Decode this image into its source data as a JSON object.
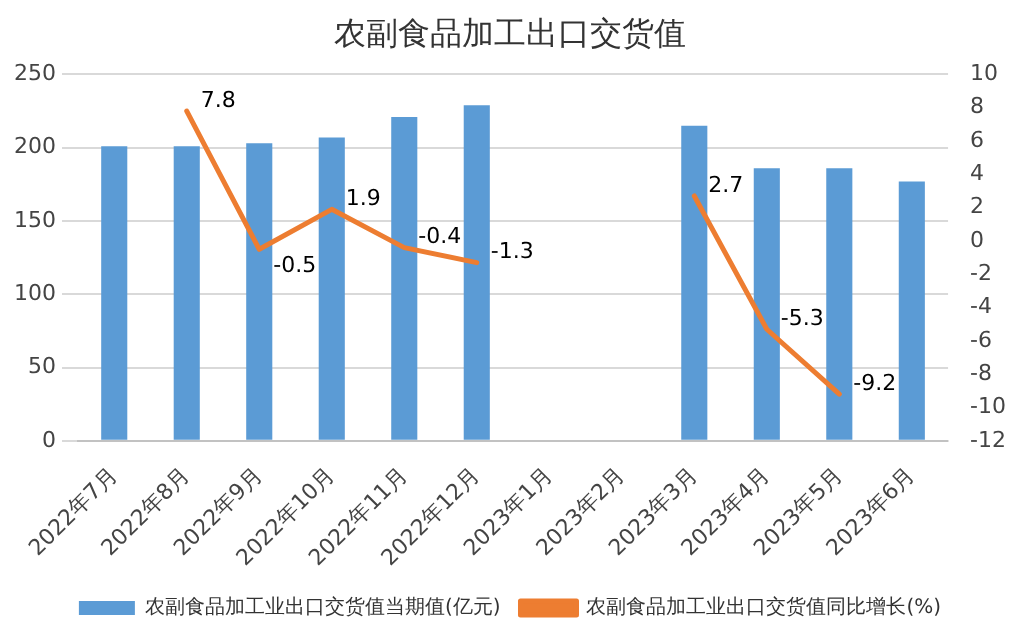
{
  "chart_data": {
    "type": "bar",
    "title": "农副食品加工出口交货值",
    "categories": [
      "2022年7月",
      "2022年8月",
      "2022年9月",
      "2022年10月",
      "2022年11月",
      "2022年12月",
      "2023年1月",
      "2023年2月",
      "2023年3月",
      "2023年4月",
      "2023年5月",
      "2023年6月"
    ],
    "series": [
      {
        "name": "农副食品加工业出口交货值当期值(亿元)",
        "color": "#5b9bd5",
        "values": [
          201,
          201,
          203,
          207,
          221,
          229,
          null,
          null,
          215,
          186,
          186,
          177
        ]
      },
      {
        "name": "农副食品加工业出口交货值同比增长(%)",
        "type": "line",
        "axis": "y2",
        "color": "#ed7d31",
        "values": [
          null,
          7.8,
          -0.5,
          1.9,
          -0.4,
          -1.3,
          null,
          null,
          2.7,
          -5.3,
          -9.2,
          null
        ],
        "value_labels": [
          null,
          "7.8",
          "-0.5",
          "1.9",
          "-0.4",
          "-1.3",
          null,
          null,
          "2.7",
          "-5.3",
          "-9.2",
          null
        ]
      }
    ],
    "ylim": [
      0,
      250
    ],
    "yticks": [
      0,
      50,
      100,
      150,
      200,
      250
    ],
    "y2lim": [
      -12,
      10
    ],
    "y2ticks": [
      -12,
      -10,
      -8,
      -6,
      -4,
      -2,
      0,
      2,
      4,
      6,
      8,
      10
    ],
    "grid": "y",
    "legend": "bottom",
    "marker": "none"
  }
}
